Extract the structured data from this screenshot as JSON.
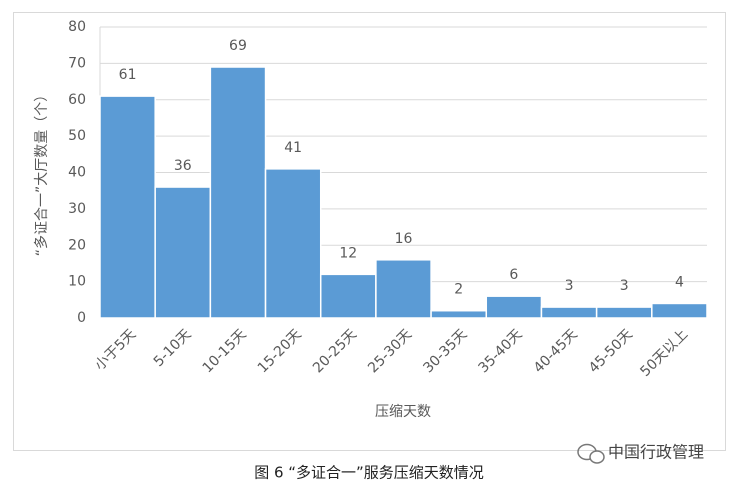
{
  "chart_data": {
    "type": "bar",
    "categories": [
      "小于5天",
      "5-10天",
      "10-15天",
      "15-20天",
      "20-25天",
      "25-30天",
      "30-35天",
      "35-40天",
      "40-45天",
      "45-50天",
      "50天以上"
    ],
    "values": [
      61,
      36,
      69,
      41,
      12,
      16,
      2,
      6,
      3,
      3,
      4
    ],
    "color": "#5b9bd5",
    "ylim": [
      0,
      80
    ],
    "yticks": [
      0,
      10,
      20,
      30,
      40,
      50,
      60,
      70,
      80
    ],
    "grid": true,
    "y_label": "“多证合一”大厅数量（个）",
    "x_label": "压缩天数",
    "caption": "图 6 “多证合一”服务压缩天数情况",
    "watermark": "中国行政管理"
  }
}
